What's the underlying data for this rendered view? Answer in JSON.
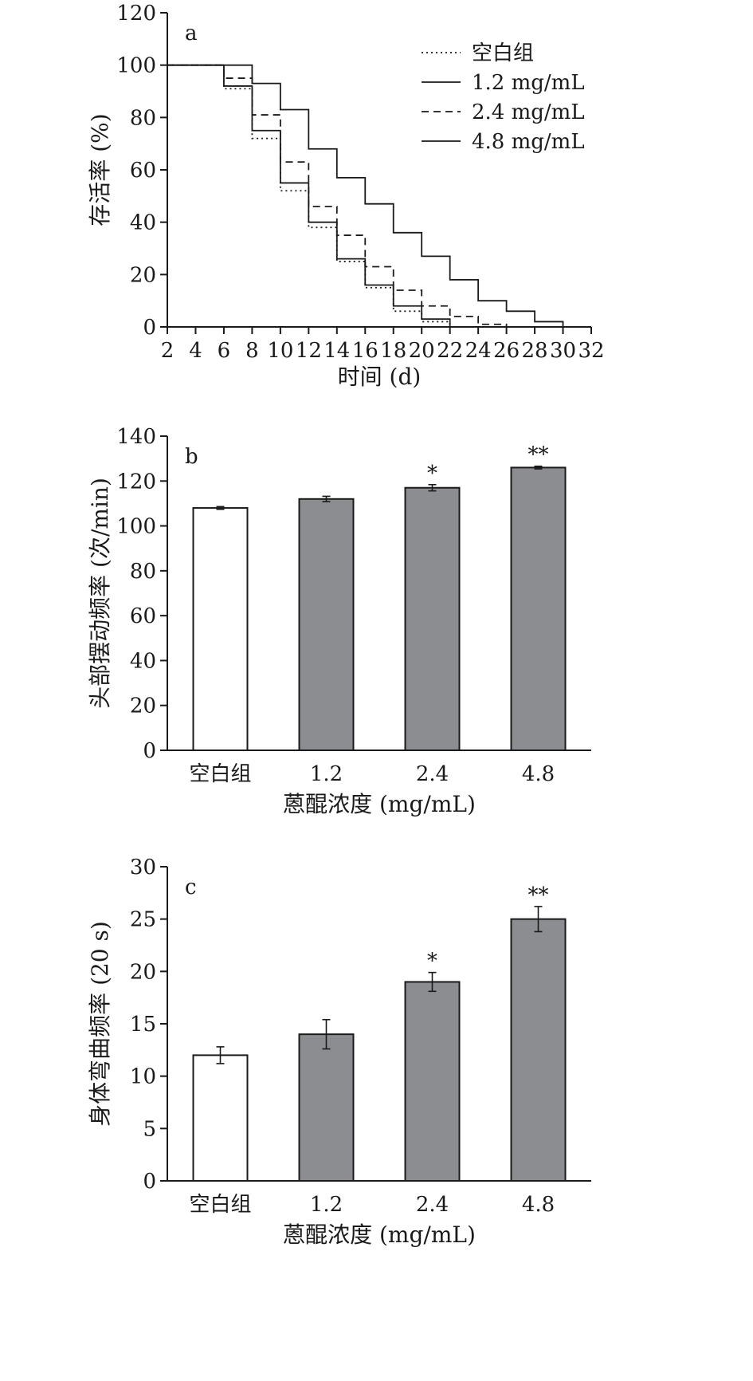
{
  "chart_data": [
    {
      "panel_label": "a",
      "type": "line",
      "step": true,
      "xlabel": "时间 (d)",
      "ylabel": "存活率 (%)",
      "xlim": [
        2,
        32
      ],
      "ylim": [
        0,
        120
      ],
      "xticks": [
        2,
        4,
        6,
        8,
        10,
        12,
        14,
        16,
        18,
        20,
        22,
        24,
        26,
        28,
        30,
        32
      ],
      "yticks": [
        0,
        20,
        40,
        60,
        80,
        100,
        120
      ],
      "legend_position": "top-right",
      "series": [
        {
          "name": "空白组",
          "style": "dotted",
          "x": [
            2,
            6,
            8,
            10,
            12,
            14,
            16,
            18,
            20,
            22
          ],
          "y": [
            100,
            91,
            72,
            52,
            38,
            25,
            15,
            6,
            2,
            0
          ]
        },
        {
          "name": "1.2 mg/mL",
          "style": "solid",
          "x": [
            2,
            6,
            8,
            10,
            12,
            14,
            16,
            18,
            20,
            22
          ],
          "y": [
            100,
            92,
            75,
            55,
            40,
            26,
            16,
            8,
            3,
            0
          ]
        },
        {
          "name": "2.4 mg/mL",
          "style": "dashed",
          "x": [
            2,
            6,
            8,
            10,
            12,
            14,
            16,
            18,
            20,
            22,
            24,
            26
          ],
          "y": [
            100,
            95,
            81,
            63,
            46,
            35,
            23,
            14,
            8,
            4,
            1,
            0
          ]
        },
        {
          "name": "4.8 mg/mL",
          "style": "solid",
          "x": [
            2,
            8,
            10,
            12,
            14,
            16,
            18,
            20,
            22,
            24,
            26,
            28,
            30
          ],
          "y": [
            100,
            93,
            83,
            68,
            57,
            47,
            36,
            27,
            18,
            10,
            6,
            2,
            0
          ]
        }
      ]
    },
    {
      "panel_label": "b",
      "type": "bar",
      "xlabel": "蒽醌浓度 (mg/mL)",
      "ylabel": "头部摆动频率 (次/min)",
      "ylim": [
        0,
        140
      ],
      "yticks": [
        0,
        20,
        40,
        60,
        80,
        100,
        120,
        140
      ],
      "categories": [
        "空白组",
        "1.2",
        "2.4",
        "4.8"
      ],
      "values": [
        108,
        112,
        117,
        126
      ],
      "errors": [
        0.6,
        1.2,
        1.4,
        0.6
      ],
      "significance": [
        "",
        "",
        "*",
        "**"
      ],
      "bar_colors": [
        "#ffffff",
        "#8c8d91",
        "#8c8d91",
        "#8c8d91"
      ]
    },
    {
      "panel_label": "c",
      "type": "bar",
      "xlabel": "蒽醌浓度 (mg/mL)",
      "ylabel": "身体弯曲频率 (20 s)",
      "ylim": [
        0,
        30
      ],
      "yticks": [
        0,
        5,
        10,
        15,
        20,
        25,
        30
      ],
      "categories": [
        "空白组",
        "1.2",
        "2.4",
        "4.8"
      ],
      "values": [
        12,
        14,
        19,
        25
      ],
      "errors": [
        0.8,
        1.4,
        0.9,
        1.2
      ],
      "significance": [
        "",
        "",
        "*",
        "**"
      ],
      "bar_colors": [
        "#ffffff",
        "#8c8d91",
        "#8c8d91",
        "#8c8d91"
      ]
    }
  ]
}
